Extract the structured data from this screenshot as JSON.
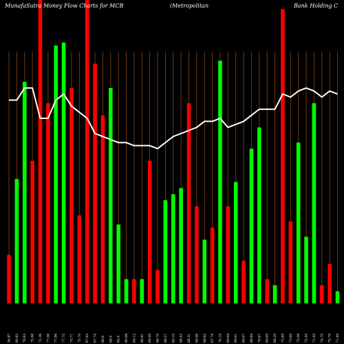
{
  "header": {
    "title_left": "MunafaSutra  Money Flow  Charts for MCB",
    "title_mid": "(Metropolitan",
    "title_right": "Bank Holding C"
  },
  "colors": {
    "background": "#000000",
    "up": "#00ff00",
    "down": "#ff0000",
    "gridline": "#8b4513",
    "line": "#ffffff"
  },
  "chart_data": {
    "type": "bar",
    "title": "MunafaSutra  Money Flow  Charts for MCB (Metropolitan Bank Holding C",
    "grid": "vertical",
    "ylim": [
      0,
      100
    ],
    "categories": [
      "58.87 ",
      "60.82 ",
      "78.63 ",
      "75.98 ",
      "72.36 ",
      "77.06 ",
      "77.86 ",
      "77.75 ",
      "75.71 ",
      "75.70 ",
      "67.63 ",
      "67.74 ",
      "60.6 ",
      "69.9 ",
      "65.8 ",
      "60.06 ",
      "65.12 ",
      "60.81 ",
      "64.00 ",
      "68.70 ",
      "68.57 ",
      "65.10 ",
      "68.43 ",
      "68.31 ",
      "69.90 ",
      "68.62 ",
      "67.74 ",
      "70.10 ",
      "69.69 ",
      "69.61 ",
      "69.07 ",
      "68.84 ",
      "70.67 ",
      "69.69 ",
      "69.20 ",
      "72.69 ",
      "73.60 ",
      "72.00 ",
      "72.40 ",
      "71.45 ",
      "74.70 ",
      "75.70 ",
      "71.40 "
    ],
    "series": [
      {
        "bar_direction": [
          "down",
          "up",
          "up",
          "down",
          "down",
          "down",
          "up",
          "up",
          "down",
          "down",
          "down",
          "down",
          "down",
          "up",
          "up",
          "up",
          "down",
          "up",
          "down",
          "down",
          "up",
          "up",
          "up",
          "down",
          "down",
          "up",
          "down",
          "up",
          "down",
          "up",
          "down",
          "up",
          "up",
          "down",
          "up",
          "down",
          "down",
          "up",
          "up",
          "up",
          "down",
          "down",
          "up"
        ],
        "values": [
          16,
          41,
          73,
          47,
          100,
          66,
          85,
          86,
          71,
          29,
          100,
          79,
          62,
          71,
          26,
          8,
          8,
          8,
          47,
          11,
          34,
          36,
          38,
          66,
          32,
          21,
          25,
          80,
          32,
          40,
          14,
          51,
          58,
          8,
          6,
          97,
          27,
          53,
          22,
          66,
          6,
          13,
          4
        ]
      },
      {
        "name": "",
        "values": [
          67,
          67,
          71,
          71,
          61,
          61,
          67,
          69,
          65,
          63,
          61,
          56,
          55,
          54,
          53,
          53,
          52,
          52,
          52,
          51,
          53,
          55,
          56,
          57,
          58,
          60,
          60,
          61,
          58,
          59,
          60,
          62,
          64,
          64,
          64,
          69,
          68,
          70,
          71,
          70,
          68,
          70,
          69
        ]
      }
    ]
  }
}
